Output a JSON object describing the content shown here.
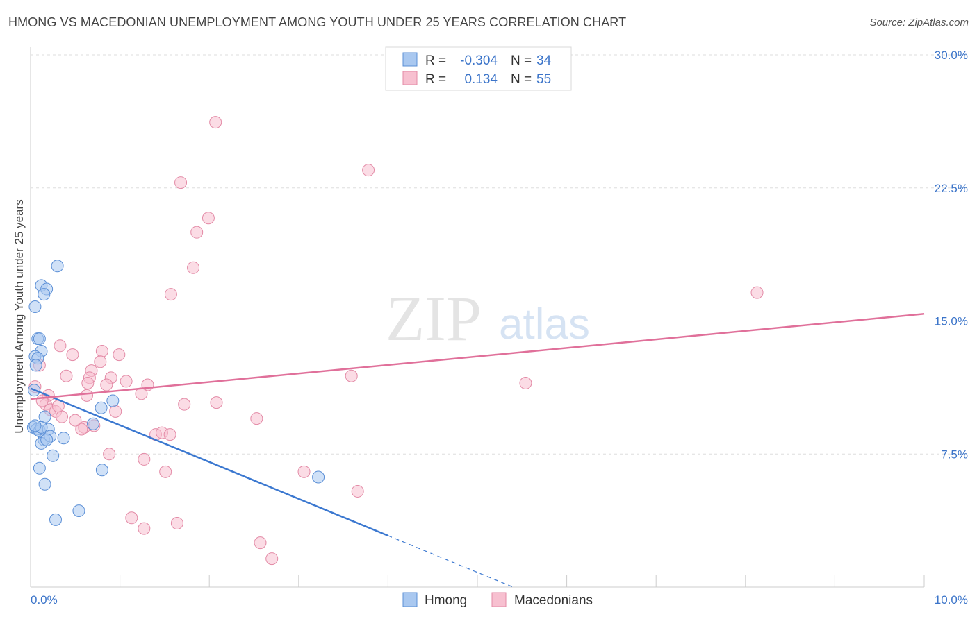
{
  "header": {
    "title": "HMONG VS MACEDONIAN UNEMPLOYMENT AMONG YOUTH UNDER 25 YEARS CORRELATION CHART",
    "source": "Source: ZipAtlas.com"
  },
  "watermark": {
    "zip": "ZIP",
    "atlas": "atlas"
  },
  "stats_legend": {
    "rows": [
      {
        "r_label": "R =",
        "r_value": "-0.304",
        "n_label": "N =",
        "n_value": "34"
      },
      {
        "r_label": "R =",
        "r_value": "0.134",
        "n_label": "N =",
        "n_value": "55"
      }
    ]
  },
  "bottom_legend": {
    "items": [
      "Hmong",
      "Macedonians"
    ]
  },
  "colors": {
    "hmong_fill": "#a9c8f0",
    "hmong_stroke": "#5b8fd6",
    "hmong_line": "#3b78d0",
    "mac_fill": "#f7c0d0",
    "mac_stroke": "#e38aa6",
    "mac_line": "#e0709a",
    "axis_text": "#3b74c9",
    "grid": "#dddddd"
  },
  "chart_data": {
    "type": "scatter",
    "title": "HMONG VS MACEDONIAN UNEMPLOYMENT AMONG YOUTH UNDER 25 YEARS CORRELATION CHART",
    "xlabel": "",
    "ylabel": "Unemployment Among Youth under 25 years",
    "xlim": [
      0,
      10
    ],
    "ylim": [
      0,
      30
    ],
    "x_tick_labels": [
      "0.0%",
      "10.0%"
    ],
    "y_ticks": [
      7.5,
      15.0,
      22.5,
      30.0
    ],
    "y_tick_labels": [
      "7.5%",
      "15.0%",
      "22.5%",
      "30.0%"
    ],
    "grid": "horizontal dashed",
    "legend_position": "top-center and bottom-center",
    "series": [
      {
        "name": "Hmong",
        "r": -0.304,
        "n": 34,
        "points": [
          [
            0.05,
            15.8
          ],
          [
            0.12,
            17.0
          ],
          [
            0.18,
            16.8
          ],
          [
            0.15,
            16.5
          ],
          [
            0.3,
            18.1
          ],
          [
            0.08,
            14.0
          ],
          [
            0.1,
            14.0
          ],
          [
            0.12,
            13.3
          ],
          [
            0.05,
            13.0
          ],
          [
            0.08,
            12.9
          ],
          [
            0.06,
            12.5
          ],
          [
            0.04,
            11.1
          ],
          [
            0.03,
            9.0
          ],
          [
            0.07,
            8.9
          ],
          [
            0.1,
            8.8
          ],
          [
            0.2,
            8.9
          ],
          [
            0.15,
            8.3
          ],
          [
            0.12,
            8.1
          ],
          [
            0.22,
            8.5
          ],
          [
            0.37,
            8.4
          ],
          [
            0.25,
            7.4
          ],
          [
            0.1,
            6.7
          ],
          [
            0.16,
            5.8
          ],
          [
            0.28,
            3.8
          ],
          [
            0.54,
            4.3
          ],
          [
            0.7,
            9.2
          ],
          [
            0.8,
            6.6
          ],
          [
            0.79,
            10.1
          ],
          [
            0.92,
            10.5
          ],
          [
            3.22,
            6.2
          ],
          [
            0.16,
            9.6
          ],
          [
            0.12,
            9.0
          ],
          [
            0.05,
            9.1
          ],
          [
            0.18,
            8.3
          ]
        ],
        "trend": {
          "x": [
            0.0,
            4.0
          ],
          "y": [
            11.2,
            2.9
          ],
          "dashed_extension": {
            "x": [
              4.0,
              5.4
            ],
            "y": [
              2.9,
              0.0
            ]
          }
        }
      },
      {
        "name": "Macedonians",
        "r": 0.134,
        "n": 55,
        "points": [
          [
            2.07,
            26.2
          ],
          [
            3.78,
            23.5
          ],
          [
            1.68,
            22.8
          ],
          [
            1.99,
            20.8
          ],
          [
            1.86,
            20.0
          ],
          [
            1.82,
            18.0
          ],
          [
            1.57,
            16.5
          ],
          [
            8.13,
            16.6
          ],
          [
            0.33,
            13.6
          ],
          [
            0.47,
            13.1
          ],
          [
            0.8,
            13.3
          ],
          [
            0.99,
            13.1
          ],
          [
            0.78,
            12.7
          ],
          [
            0.68,
            12.2
          ],
          [
            0.1,
            12.5
          ],
          [
            0.05,
            11.3
          ],
          [
            0.4,
            11.9
          ],
          [
            0.66,
            11.8
          ],
          [
            0.9,
            11.8
          ],
          [
            0.64,
            11.5
          ],
          [
            0.85,
            11.4
          ],
          [
            1.07,
            11.6
          ],
          [
            1.31,
            11.4
          ],
          [
            3.59,
            11.9
          ],
          [
            5.54,
            11.5
          ],
          [
            0.2,
            10.8
          ],
          [
            0.63,
            10.8
          ],
          [
            1.24,
            10.9
          ],
          [
            0.17,
            10.3
          ],
          [
            0.22,
            10.0
          ],
          [
            0.28,
            9.9
          ],
          [
            0.35,
            9.6
          ],
          [
            0.95,
            9.9
          ],
          [
            1.72,
            10.3
          ],
          [
            2.08,
            10.4
          ],
          [
            0.6,
            9.0
          ],
          [
            0.57,
            8.9
          ],
          [
            2.53,
            9.5
          ],
          [
            1.4,
            8.6
          ],
          [
            1.47,
            8.7
          ],
          [
            1.56,
            8.6
          ],
          [
            0.88,
            7.5
          ],
          [
            1.27,
            7.2
          ],
          [
            1.51,
            6.5
          ],
          [
            3.06,
            6.5
          ],
          [
            3.66,
            5.4
          ],
          [
            1.13,
            3.9
          ],
          [
            1.27,
            3.3
          ],
          [
            1.64,
            3.6
          ],
          [
            2.57,
            2.5
          ],
          [
            2.7,
            1.6
          ],
          [
            0.13,
            10.5
          ],
          [
            0.5,
            9.4
          ],
          [
            0.31,
            10.2
          ],
          [
            0.71,
            9.1
          ]
        ],
        "trend": {
          "x": [
            0.0,
            10.0
          ],
          "y": [
            10.6,
            15.4
          ]
        }
      }
    ]
  }
}
